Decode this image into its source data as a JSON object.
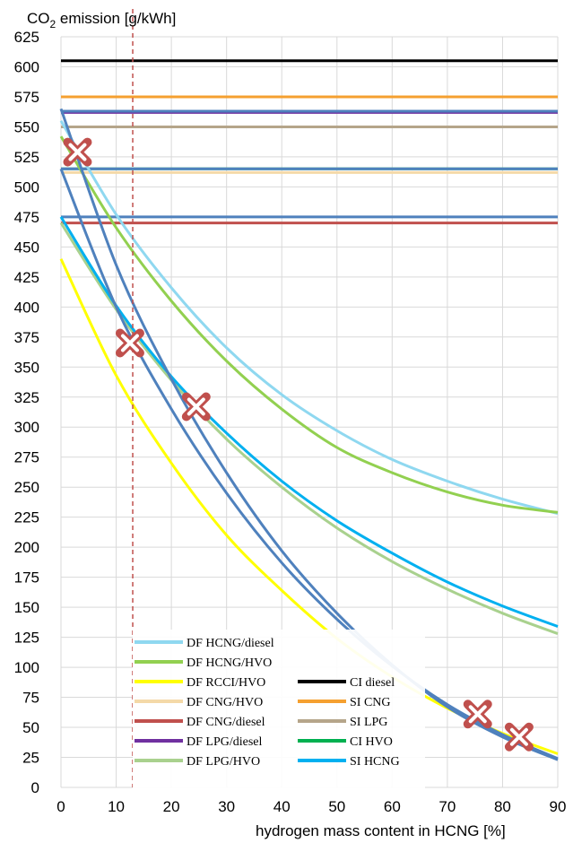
{
  "chart_data": {
    "type": "line",
    "ylabel_main": "CO",
    "ylabel_sub": "2",
    "ylabel_rest": " emission [g/kWh]",
    "xlabel": "hydrogen mass content in HCNG [%]",
    "xlim": [
      0,
      90
    ],
    "ylim": [
      0,
      625
    ],
    "xticks": [
      0,
      10,
      20,
      30,
      40,
      50,
      60,
      70,
      80,
      90
    ],
    "yticks": [
      0,
      25,
      50,
      75,
      100,
      125,
      150,
      175,
      200,
      225,
      250,
      275,
      300,
      325,
      350,
      375,
      400,
      425,
      450,
      475,
      500,
      525,
      550,
      575,
      600,
      625
    ],
    "grid": true,
    "legend_position": "bottom-left",
    "vline": {
      "x": 13,
      "color": "#c0504d"
    },
    "series": [
      {
        "name": "DF HCNG/diesel",
        "color": "#8fd8f0",
        "kind": "curve",
        "x": [
          0,
          10,
          20,
          30,
          40,
          50,
          60,
          70,
          80,
          90
        ],
        "y": [
          555,
          477,
          416,
          366,
          327,
          297,
          273,
          255,
          240,
          228
        ]
      },
      {
        "name": "DF HCNG/HVO",
        "color": "#92d050",
        "kind": "curve",
        "x": [
          0,
          10,
          20,
          30,
          40,
          50,
          60,
          70,
          80,
          90
        ],
        "y": [
          542,
          466,
          405,
          355,
          315,
          283,
          262,
          246,
          235,
          229
        ]
      },
      {
        "name": "DF RCCI/HVO",
        "color": "#ffff00",
        "kind": "curve",
        "x": [
          0,
          10,
          20,
          30,
          40,
          50,
          60,
          70,
          80,
          90
        ],
        "y": [
          440,
          343,
          270,
          210,
          164,
          124,
          92,
          66,
          45,
          28
        ]
      },
      {
        "name": "DF CNG/HVO",
        "color": "#f4d9a8",
        "kind": "flat",
        "y": 512
      },
      {
        "name": "DF CNG/diesel",
        "color": "#c0504d",
        "kind": "flat",
        "y": 470
      },
      {
        "name": "DF LPG/diesel",
        "color": "#7030a0",
        "kind": "flat",
        "y": 562
      },
      {
        "name": "DF LPG/HVO",
        "color": "#a9d18e",
        "kind": "curve",
        "x": [
          0,
          10,
          20,
          30,
          40,
          50,
          60,
          70,
          80,
          90
        ],
        "y": [
          470,
          398,
          339,
          290,
          250,
          216,
          188,
          165,
          145,
          128
        ]
      },
      {
        "name": "CI diesel",
        "color": "#000000",
        "kind": "flat",
        "y": 605
      },
      {
        "name": "SI CNG",
        "color": "#f5a030",
        "kind": "flat",
        "y": 575
      },
      {
        "name": "SI LPG",
        "color": "#b5a58a",
        "kind": "flat",
        "y": 550
      },
      {
        "name": "CI HVO",
        "color": "#00b050",
        "kind": "flat",
        "y": 515
      },
      {
        "name": "SI HCNG",
        "color": "#00b0f0",
        "kind": "curve",
        "x": [
          0,
          10,
          20,
          30,
          40,
          50,
          60,
          70,
          80,
          90
        ],
        "y": [
          475,
          401,
          342,
          295,
          255,
          222,
          195,
          171,
          151,
          134
        ]
      }
    ],
    "extra_lines": [
      {
        "color": "#4f81bd",
        "kind": "flat",
        "y": 563
      },
      {
        "color": "#4f81bd",
        "kind": "flat",
        "y": 515
      },
      {
        "color": "#4f81bd",
        "kind": "flat",
        "y": 475
      },
      {
        "color": "#4f81bd",
        "kind": "curve",
        "x": [
          0,
          10,
          20,
          30,
          40,
          50,
          60,
          70,
          80,
          90
        ],
        "y": [
          565,
          435,
          340,
          262,
          197,
          145,
          102,
          67,
          42,
          23
        ]
      },
      {
        "color": "#4f81bd",
        "kind": "curve",
        "x": [
          0,
          10,
          20,
          30,
          40,
          50,
          60,
          70,
          80,
          90
        ],
        "y": [
          515,
          400,
          315,
          245,
          187,
          140,
          101,
          69,
          44,
          24
        ]
      }
    ],
    "markers": [
      {
        "x": 3,
        "y": 529
      },
      {
        "x": 12.5,
        "y": 370
      },
      {
        "x": 24.5,
        "y": 317
      },
      {
        "x": 75.5,
        "y": 61
      },
      {
        "x": 83,
        "y": 42
      }
    ],
    "marker_color": "#c0504d"
  }
}
